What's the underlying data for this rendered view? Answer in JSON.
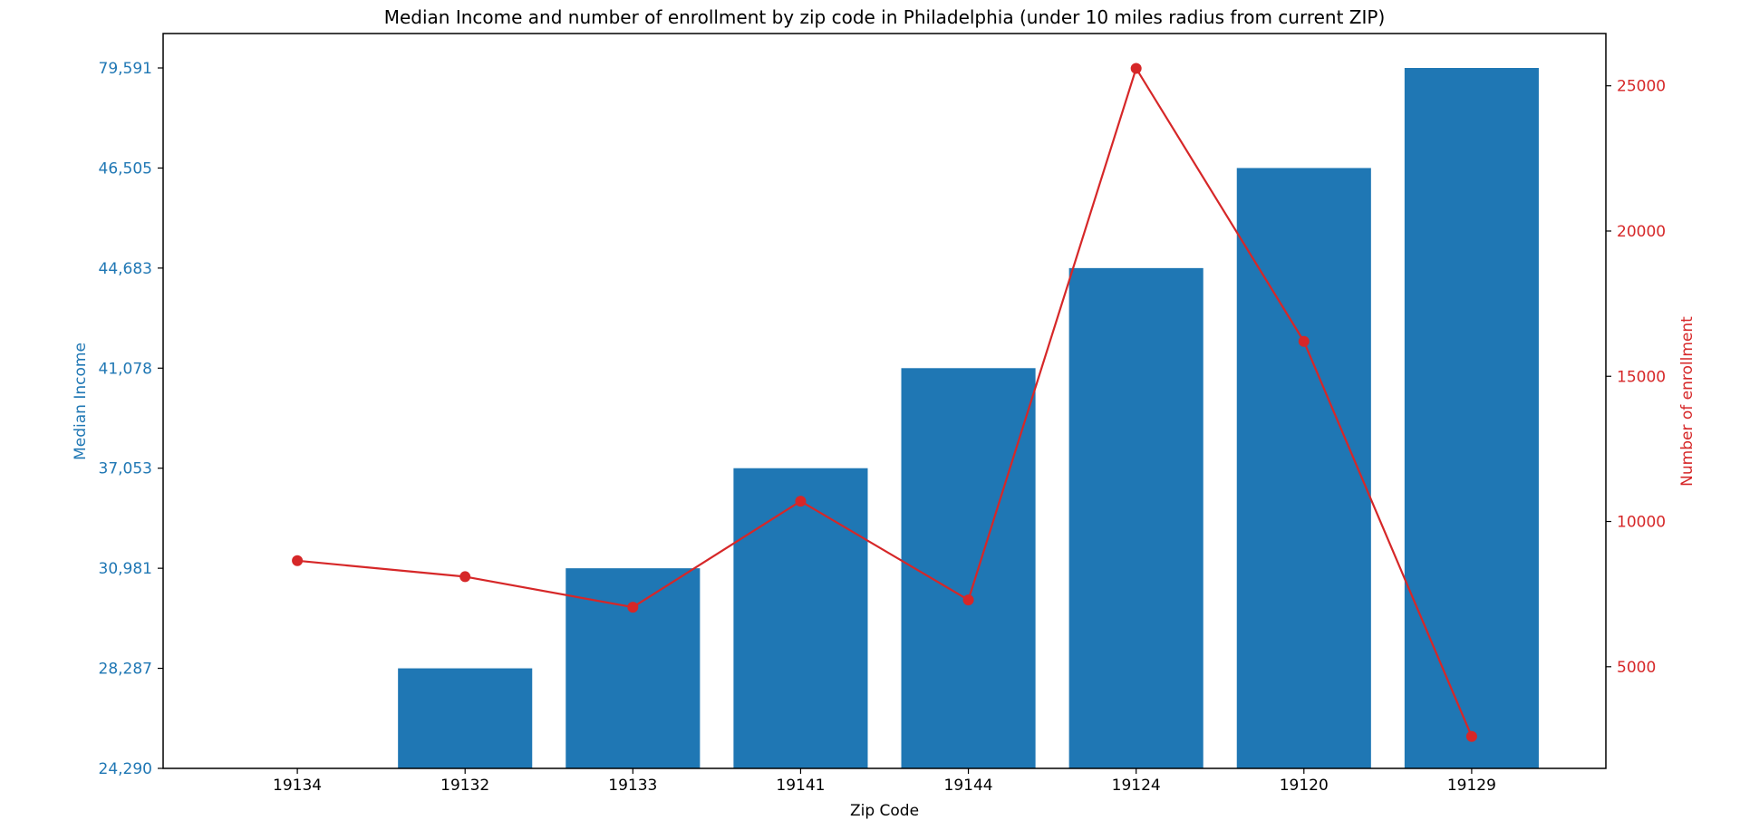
{
  "chart_data": {
    "type": "bar",
    "title": "Median Income and number of enrollment by zip code in Philadelphia (under 10 miles radius from current ZIP)",
    "xlabel": "Zip Code",
    "ylabel": "Median Income",
    "y2label": "Number of enrollment",
    "categories": [
      "19134",
      "19132",
      "19133",
      "19141",
      "19144",
      "19124",
      "19120",
      "19129"
    ],
    "y_tick_labels": [
      "24,290",
      "28,287",
      "30,981",
      "37,053",
      "41,078",
      "44,683",
      "46,505",
      "79,591"
    ],
    "series": [
      {
        "name": "Median Income",
        "type": "bar",
        "axis": "left",
        "color": "#1f77b4",
        "values": [
          24290,
          28287,
          30981,
          37053,
          41078,
          44683,
          46505,
          79591
        ]
      },
      {
        "name": "Number of enrollment",
        "type": "line",
        "axis": "right",
        "color": "#d62728",
        "values": [
          8650,
          8100,
          7050,
          10700,
          7300,
          25600,
          16200,
          2600
        ]
      }
    ],
    "y2ticks": [
      5000,
      10000,
      15000,
      20000,
      25000
    ],
    "y2lim": [
      1500,
      26800
    ],
    "grid": false,
    "colors": {
      "bar": "#1f77b4",
      "line": "#d62728",
      "left_axis_text": "#1f77b4",
      "right_axis_text": "#d62728",
      "axis": "#000000"
    }
  }
}
